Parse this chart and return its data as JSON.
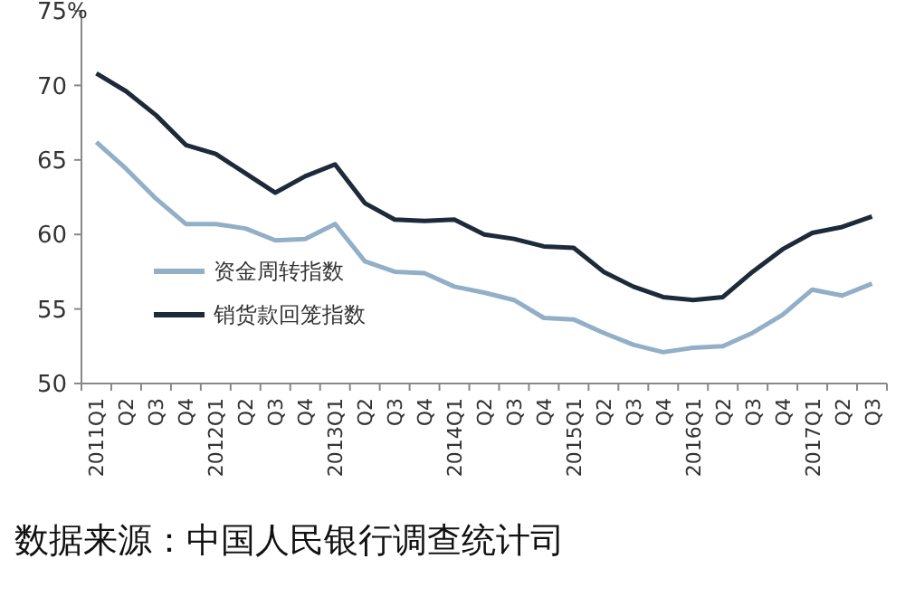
{
  "chart_data": {
    "type": "line",
    "ylabel": "%",
    "categories": [
      "2011Q1",
      "Q2",
      "Q3",
      "Q4",
      "2012Q1",
      "Q2",
      "Q3",
      "Q4",
      "2013Q1",
      "Q2",
      "Q3",
      "Q4",
      "2014Q1",
      "Q2",
      "Q3",
      "Q4",
      "2015Q1",
      "Q2",
      "Q3",
      "Q4",
      "2016Q1",
      "Q2",
      "Q3",
      "Q4",
      "2017Q1",
      "Q2",
      "Q3"
    ],
    "series": [
      {
        "name": "资金周转指数",
        "color": "#93afc8",
        "values": [
          66.2,
          64.4,
          62.4,
          60.7,
          60.7,
          60.4,
          59.6,
          59.7,
          60.7,
          58.2,
          57.5,
          57.4,
          56.5,
          56.1,
          55.6,
          54.4,
          54.3,
          53.4,
          52.6,
          52.1,
          52.4,
          52.5,
          53.4,
          54.6,
          56.3,
          55.9,
          56.7
        ]
      },
      {
        "name": "销货款回笼指数",
        "color": "#1c2a3a",
        "values": [
          70.8,
          69.6,
          68,
          66,
          65.4,
          64.1,
          62.8,
          63.9,
          64.7,
          62.1,
          61,
          60.9,
          61,
          60,
          59.7,
          59.2,
          59.1,
          57.5,
          56.5,
          55.8,
          55.6,
          55.8,
          57.5,
          59,
          60.1,
          60.5,
          61.2
        ]
      }
    ],
    "ylim": [
      50,
      75
    ],
    "yticks": [
      50,
      55,
      60,
      65,
      70,
      75
    ],
    "grid": false,
    "legend": "bottom left",
    "marker": "none",
    "line_style": "solid",
    "annotations": [
      "数据来源：中国人民银行调查统计司"
    ]
  }
}
